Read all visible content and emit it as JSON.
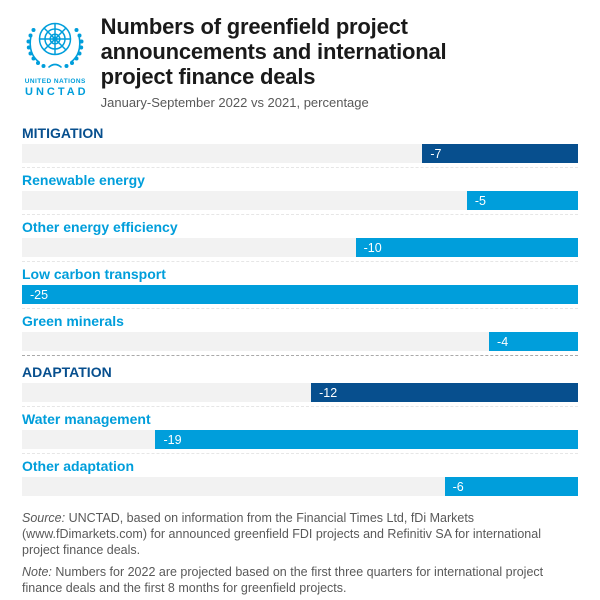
{
  "colors": {
    "dark_blue": "#074F8E",
    "light_blue": "#009EDB",
    "track_gray": "#F2F2F2",
    "title_text": "#1A1A1A",
    "muted_text": "#595959",
    "section_divider": "#A9A9A9",
    "row_line": "#E6E6E6",
    "background": "#FFFFFF"
  },
  "logo": {
    "emblem": "un-globe-olive-branches",
    "line1": "UNITED NATIONS",
    "line2": "UNCTAD"
  },
  "header": {
    "title": "Numbers of greenfield project announcements and international project finance deals",
    "title_lines": [
      "Numbers of greenfield project",
      "announcements and international",
      "project finance deals"
    ],
    "subtitle": "January-September 2022 vs 2021, percentage"
  },
  "chart": {
    "scale_max": 25,
    "rows": [
      {
        "label": "MITIGATION",
        "value": -7,
        "display": "-7",
        "level": "section"
      },
      {
        "label": "Renewable energy",
        "value": -5,
        "display": "-5",
        "level": "sub"
      },
      {
        "label": "Other energy efficiency",
        "value": -10,
        "display": "-10",
        "level": "sub"
      },
      {
        "label": "Low carbon transport",
        "value": -25,
        "display": "-25",
        "level": "sub"
      },
      {
        "label": "Green minerals",
        "value": -4,
        "display": "-4",
        "level": "sub"
      },
      {
        "label": "ADAPTATION",
        "value": -12,
        "display": "-12",
        "level": "section"
      },
      {
        "label": "Water management",
        "value": -19,
        "display": "-19",
        "level": "sub"
      },
      {
        "label": "Other adaptation",
        "value": -6,
        "display": "-6",
        "level": "sub"
      }
    ]
  },
  "chart_data": {
    "type": "bar",
    "orientation": "horizontal",
    "bars_anchored": "right",
    "title": "Numbers of greenfield project announcements and international project finance deals",
    "subtitle": "January-September 2022 vs 2021, percentage",
    "unit": "percentage change, Jan-Sep 2022 vs 2021",
    "categories": [
      "MITIGATION",
      "Renewable energy",
      "Other energy efficiency",
      "Low carbon transport",
      "Green minerals",
      "ADAPTATION",
      "Water management",
      "Other adaptation"
    ],
    "values": [
      -7,
      -5,
      -10,
      -25,
      -4,
      -12,
      -19,
      -6
    ],
    "xlim": [
      -25,
      0
    ],
    "grid": false,
    "legend": "none",
    "groups": [
      {
        "name": "MITIGATION",
        "value": -7,
        "children": {
          "Renewable energy": -5,
          "Other energy efficiency": -10,
          "Low carbon transport": -25,
          "Green minerals": -4
        }
      },
      {
        "name": "ADAPTATION",
        "value": -12,
        "children": {
          "Water management": -19,
          "Other adaptation": -6
        }
      }
    ]
  },
  "footer": {
    "source_label": "Source:",
    "source_text": " UNCTAD, based on information from the Financial Times Ltd, fDi Markets (www.fDimarkets.com) for announced greenfield FDI projects and Refinitiv SA for international project finance deals.",
    "note_label": "Note:",
    "note_text": " Numbers for 2022 are projected based on the first three quarters for international project finance deals and the first 8 months for greenfield projects."
  }
}
